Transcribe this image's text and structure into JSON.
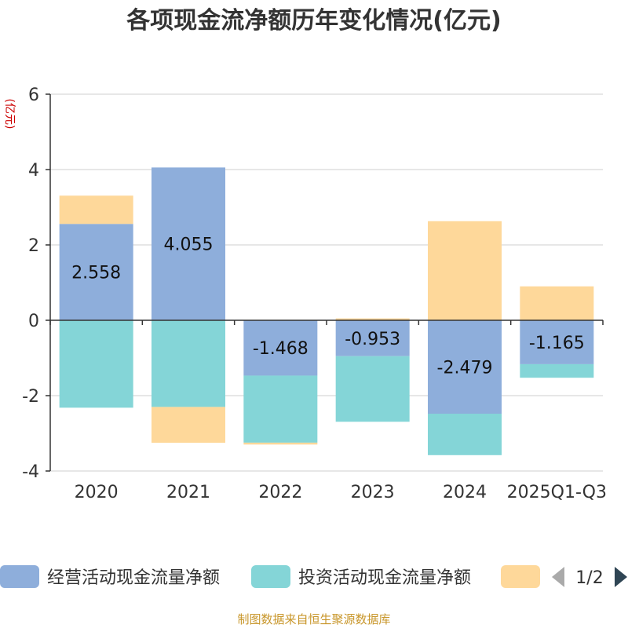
{
  "chart_data": {
    "type": "bar",
    "stacked": true,
    "title": "各项现金流净额历年变化情况(亿元)",
    "ylabel": "(亿元)",
    "xlabel": "",
    "ylim": [
      -4,
      6
    ],
    "yticks": [
      -4,
      -2,
      0,
      2,
      4,
      6
    ],
    "grid": true,
    "categories": [
      "2020",
      "2021",
      "2022",
      "2023",
      "2024",
      "2025Q1-Q3"
    ],
    "series": [
      {
        "name": "经营活动现金流量净额",
        "color": "#8eaedb",
        "values": [
          2.558,
          4.055,
          -1.468,
          -0.953,
          -2.479,
          -1.165
        ],
        "show_labels": true
      },
      {
        "name": "投资活动现金流量净额",
        "color": "#84d5d7",
        "values": [
          -2.32,
          -2.3,
          -1.78,
          -1.74,
          -1.1,
          -0.36
        ],
        "show_labels": false
      },
      {
        "name": "",
        "color": "#fed89a",
        "values": [
          0.75,
          -0.95,
          -0.05,
          0.05,
          2.63,
          0.9
        ],
        "show_labels": false
      }
    ],
    "legend_position": "bottom",
    "legend_pager": "1/2",
    "source": "制图数据来自恒生聚源数据库"
  }
}
